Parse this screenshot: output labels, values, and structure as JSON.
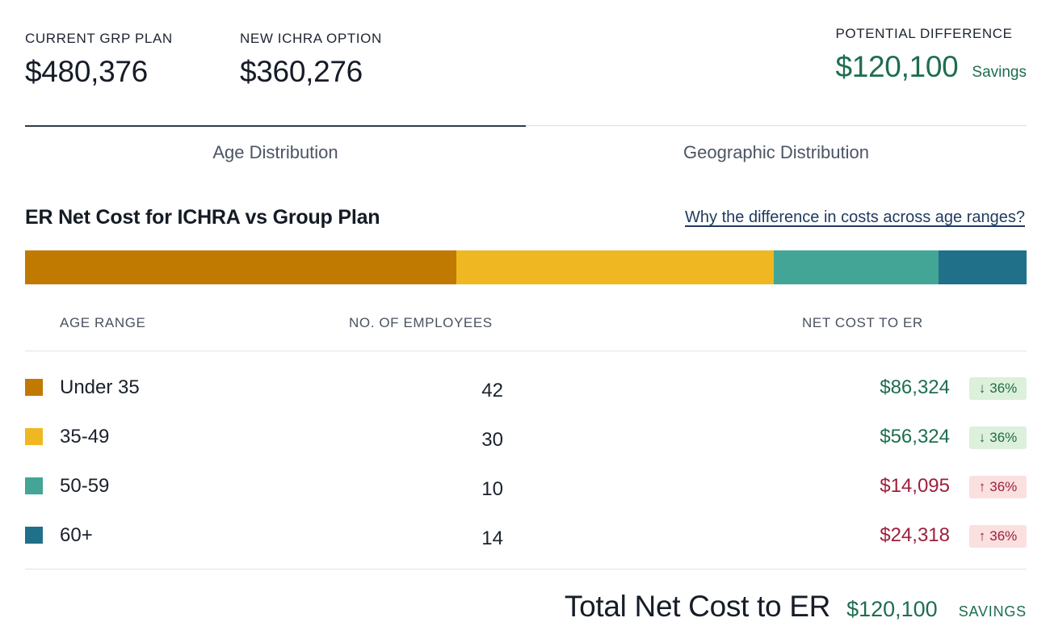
{
  "summary": {
    "current": {
      "label": "CURRENT GRP PLAN",
      "value": "$480,376"
    },
    "new": {
      "label": "NEW ICHRA OPTION",
      "value": "$360,276"
    },
    "difference": {
      "label": "POTENTIAL DIFFERENCE",
      "value": "$120,100",
      "word": "Savings"
    }
  },
  "tabs": [
    {
      "label": "Age Distribution",
      "active": true
    },
    {
      "label": "Geographic Distribution",
      "active": false
    }
  ],
  "section": {
    "title": "ER Net Cost for ICHRA vs Group Plan",
    "help_link": "Why the difference in costs across age ranges?"
  },
  "colors": {
    "under35": "#c07a02",
    "r35_49": "#efb722",
    "r50_59": "#43a596",
    "r60plus": "#20708a",
    "savings_green": "#1e6e4e",
    "increase_red": "#9e1f3c"
  },
  "stack_bar": [
    {
      "group": "Under 35",
      "share": 0.4306,
      "color": "#c07a02"
    },
    {
      "group": "35-49",
      "share": 0.3169,
      "color": "#efb722"
    },
    {
      "group": "50-59",
      "share": 0.1645,
      "color": "#43a596"
    },
    {
      "group": "60+",
      "share": 0.0879,
      "color": "#20708a"
    }
  ],
  "table": {
    "headers": {
      "age": "AGE RANGE",
      "employees": "NO. OF EMPLOYEES",
      "net_cost": "NET COST TO ER"
    },
    "rows": [
      {
        "age": "Under 35",
        "employees": "42",
        "net_cost": "$86,324",
        "change": "36%",
        "arrow": "↓",
        "direction": "down",
        "color": "#c07a02"
      },
      {
        "age": "35-49",
        "employees": "30",
        "net_cost": "$56,324",
        "change": "36%",
        "arrow": "↓",
        "direction": "down",
        "color": "#efb722"
      },
      {
        "age": "50-59",
        "employees": "10",
        "net_cost": "$14,095",
        "change": "36%",
        "arrow": "↑",
        "direction": "up",
        "color": "#43a596"
      },
      {
        "age": "60+",
        "employees": "14",
        "net_cost": "$24,318",
        "change": "36%",
        "arrow": "↑",
        "direction": "up",
        "color": "#20708a"
      }
    ]
  },
  "total": {
    "label": "Total Net Cost to ER",
    "value": "$120,100",
    "word": "SAVINGS"
  }
}
